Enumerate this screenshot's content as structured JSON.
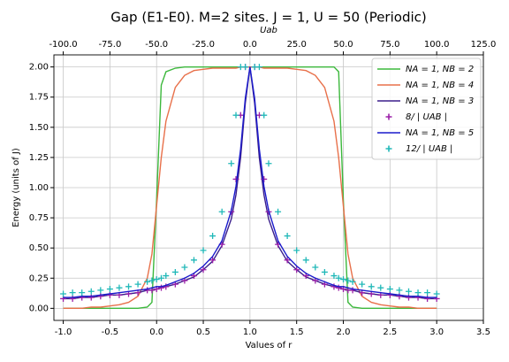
{
  "chart_data": {
    "type": "line",
    "title": "Gap (E1-E0). M=2 sites. J = 1, U = 50 (Periodic)",
    "xlabel": "Values of r",
    "ylabel": "Energy (units of J)",
    "x2label": "Uab",
    "grid": true,
    "legend": "upper right",
    "xlim": [
      -1.1,
      3.5
    ],
    "xticks": [
      {
        "value": -1,
        "label": "-1.0"
      },
      {
        "value": -0.5,
        "label": "-0.5"
      },
      {
        "value": 0,
        "label": "0.0"
      },
      {
        "value": 0.5,
        "label": "0.5"
      },
      {
        "value": 1,
        "label": "1.0"
      },
      {
        "value": 1.5,
        "label": "1.5"
      },
      {
        "value": 2,
        "label": "2.0"
      },
      {
        "value": 2.5,
        "label": "2.5"
      },
      {
        "value": 3,
        "label": "3.0"
      },
      {
        "value": 3.5,
        "label": "3.5"
      }
    ],
    "x2lim": [
      -105,
      125
    ],
    "x2ticks": [
      {
        "value": -100,
        "label": "-100.0"
      },
      {
        "value": -75,
        "label": "-75.0"
      },
      {
        "value": -50,
        "label": "-50.0"
      },
      {
        "value": -25,
        "label": "-25.0"
      },
      {
        "value": 0,
        "label": "0.0"
      },
      {
        "value": 25,
        "label": "25.0"
      },
      {
        "value": 50,
        "label": "50.0"
      },
      {
        "value": 75,
        "label": "75.0"
      },
      {
        "value": 100,
        "label": "100.0"
      },
      {
        "value": 125,
        "label": "125.0"
      }
    ],
    "ylim": [
      -0.1,
      2.1
    ],
    "yticks": [
      {
        "value": 0,
        "label": "0.00"
      },
      {
        "value": 0.25,
        "label": "0.25"
      },
      {
        "value": 0.5,
        "label": "0.50"
      },
      {
        "value": 0.75,
        "label": "0.75"
      },
      {
        "value": 1,
        "label": "1.00"
      },
      {
        "value": 1.25,
        "label": "1.25"
      },
      {
        "value": 1.5,
        "label": "1.50"
      },
      {
        "value": 1.75,
        "label": "1.75"
      },
      {
        "value": 2,
        "label": "2.00"
      }
    ],
    "x": [
      -1.0,
      -0.9,
      -0.8,
      -0.7,
      -0.6,
      -0.5,
      -0.4,
      -0.3,
      -0.2,
      -0.1,
      -0.05,
      0.0,
      0.05,
      0.1,
      0.2,
      0.3,
      0.4,
      0.5,
      0.6,
      0.7,
      0.8,
      0.85,
      0.9,
      0.95,
      1.0,
      1.05,
      1.1,
      1.15,
      1.2,
      1.3,
      1.4,
      1.5,
      1.6,
      1.7,
      1.8,
      1.9,
      1.95,
      2.0,
      2.05,
      2.1,
      2.2,
      2.3,
      2.4,
      2.5,
      2.6,
      2.7,
      2.8,
      2.9,
      3.0
    ],
    "series": [
      {
        "name": "NA = 1, NB = 2",
        "color": "#3cb83c",
        "style": "line",
        "values": [
          0,
          0,
          0,
          0,
          0,
          0,
          0,
          0,
          0,
          0.01,
          0.05,
          0.9,
          1.85,
          1.96,
          1.99,
          2,
          2,
          2,
          2,
          2,
          2,
          2,
          2,
          2,
          2,
          2,
          2,
          2,
          2,
          2,
          2,
          2,
          2,
          2,
          2,
          2,
          1.96,
          0.9,
          0.05,
          0.01,
          0,
          0,
          0,
          0,
          0,
          0,
          0,
          0,
          0
        ]
      },
      {
        "name": "NA = 1, NB = 4",
        "color": "#e8704a",
        "style": "line",
        "values": [
          0,
          0,
          0,
          0.01,
          0.01,
          0.02,
          0.03,
          0.05,
          0.1,
          0.25,
          0.45,
          0.85,
          1.25,
          1.55,
          1.83,
          1.93,
          1.97,
          1.98,
          1.99,
          1.99,
          1.99,
          1.99,
          2,
          2,
          2,
          2,
          2,
          1.99,
          1.99,
          1.99,
          1.99,
          1.98,
          1.97,
          1.93,
          1.83,
          1.55,
          1.25,
          0.85,
          0.45,
          0.25,
          0.1,
          0.05,
          0.03,
          0.02,
          0.01,
          0.01,
          0,
          0,
          0
        ]
      },
      {
        "name": "NA = 1, NB = 3",
        "color": "#3b1f8c",
        "style": "line",
        "values": [
          0.08,
          0.08,
          0.09,
          0.09,
          0.1,
          0.11,
          0.11,
          0.12,
          0.13,
          0.15,
          0.15,
          0.16,
          0.17,
          0.18,
          0.2,
          0.23,
          0.26,
          0.32,
          0.39,
          0.52,
          0.74,
          0.94,
          1.25,
          1.7,
          2,
          1.7,
          1.25,
          0.94,
          0.74,
          0.52,
          0.39,
          0.32,
          0.26,
          0.23,
          0.2,
          0.18,
          0.17,
          0.16,
          0.15,
          0.15,
          0.13,
          0.12,
          0.11,
          0.11,
          0.1,
          0.09,
          0.09,
          0.08,
          0.08
        ]
      },
      {
        "name": "8/ | UAB |",
        "color": "#9b1fa8",
        "style": "marker",
        "values": [
          0.08,
          0.08,
          0.09,
          0.09,
          0.1,
          0.11,
          0.11,
          0.12,
          0.13,
          0.15,
          0.15,
          0.16,
          0.17,
          0.18,
          0.2,
          0.23,
          0.27,
          0.32,
          0.4,
          0.53,
          0.8,
          1.07,
          1.6,
          2,
          null,
          2,
          1.6,
          1.07,
          0.8,
          0.53,
          0.4,
          0.32,
          0.27,
          0.23,
          0.2,
          0.18,
          0.17,
          0.16,
          0.15,
          0.15,
          0.13,
          0.12,
          0.11,
          0.11,
          0.1,
          0.09,
          0.09,
          0.08,
          0.08
        ]
      },
      {
        "name": "NA = 1, NB = 5",
        "color": "#1a1acc",
        "style": "line",
        "values": [
          0.09,
          0.09,
          0.1,
          0.1,
          0.11,
          0.12,
          0.13,
          0.14,
          0.15,
          0.16,
          0.17,
          0.18,
          0.18,
          0.19,
          0.22,
          0.25,
          0.29,
          0.35,
          0.43,
          0.56,
          0.81,
          1.01,
          1.32,
          1.74,
          2,
          1.74,
          1.32,
          1.01,
          0.81,
          0.56,
          0.43,
          0.35,
          0.29,
          0.25,
          0.22,
          0.19,
          0.18,
          0.18,
          0.17,
          0.16,
          0.15,
          0.14,
          0.13,
          0.12,
          0.11,
          0.1,
          0.1,
          0.09,
          0.09
        ]
      },
      {
        "name": "12/ | UAB |",
        "color": "#20b8b8",
        "style": "marker",
        "values": [
          0.12,
          0.13,
          0.13,
          0.14,
          0.15,
          0.16,
          0.17,
          0.18,
          0.2,
          0.22,
          0.23,
          0.24,
          0.25,
          0.27,
          0.3,
          0.34,
          0.4,
          0.48,
          0.6,
          0.8,
          1.2,
          1.6,
          2,
          2,
          null,
          2,
          2,
          1.6,
          1.2,
          0.8,
          0.6,
          0.48,
          0.4,
          0.34,
          0.3,
          0.27,
          0.25,
          0.24,
          0.23,
          0.22,
          0.2,
          0.18,
          0.17,
          0.16,
          0.15,
          0.14,
          0.13,
          0.13,
          0.12
        ]
      }
    ]
  }
}
